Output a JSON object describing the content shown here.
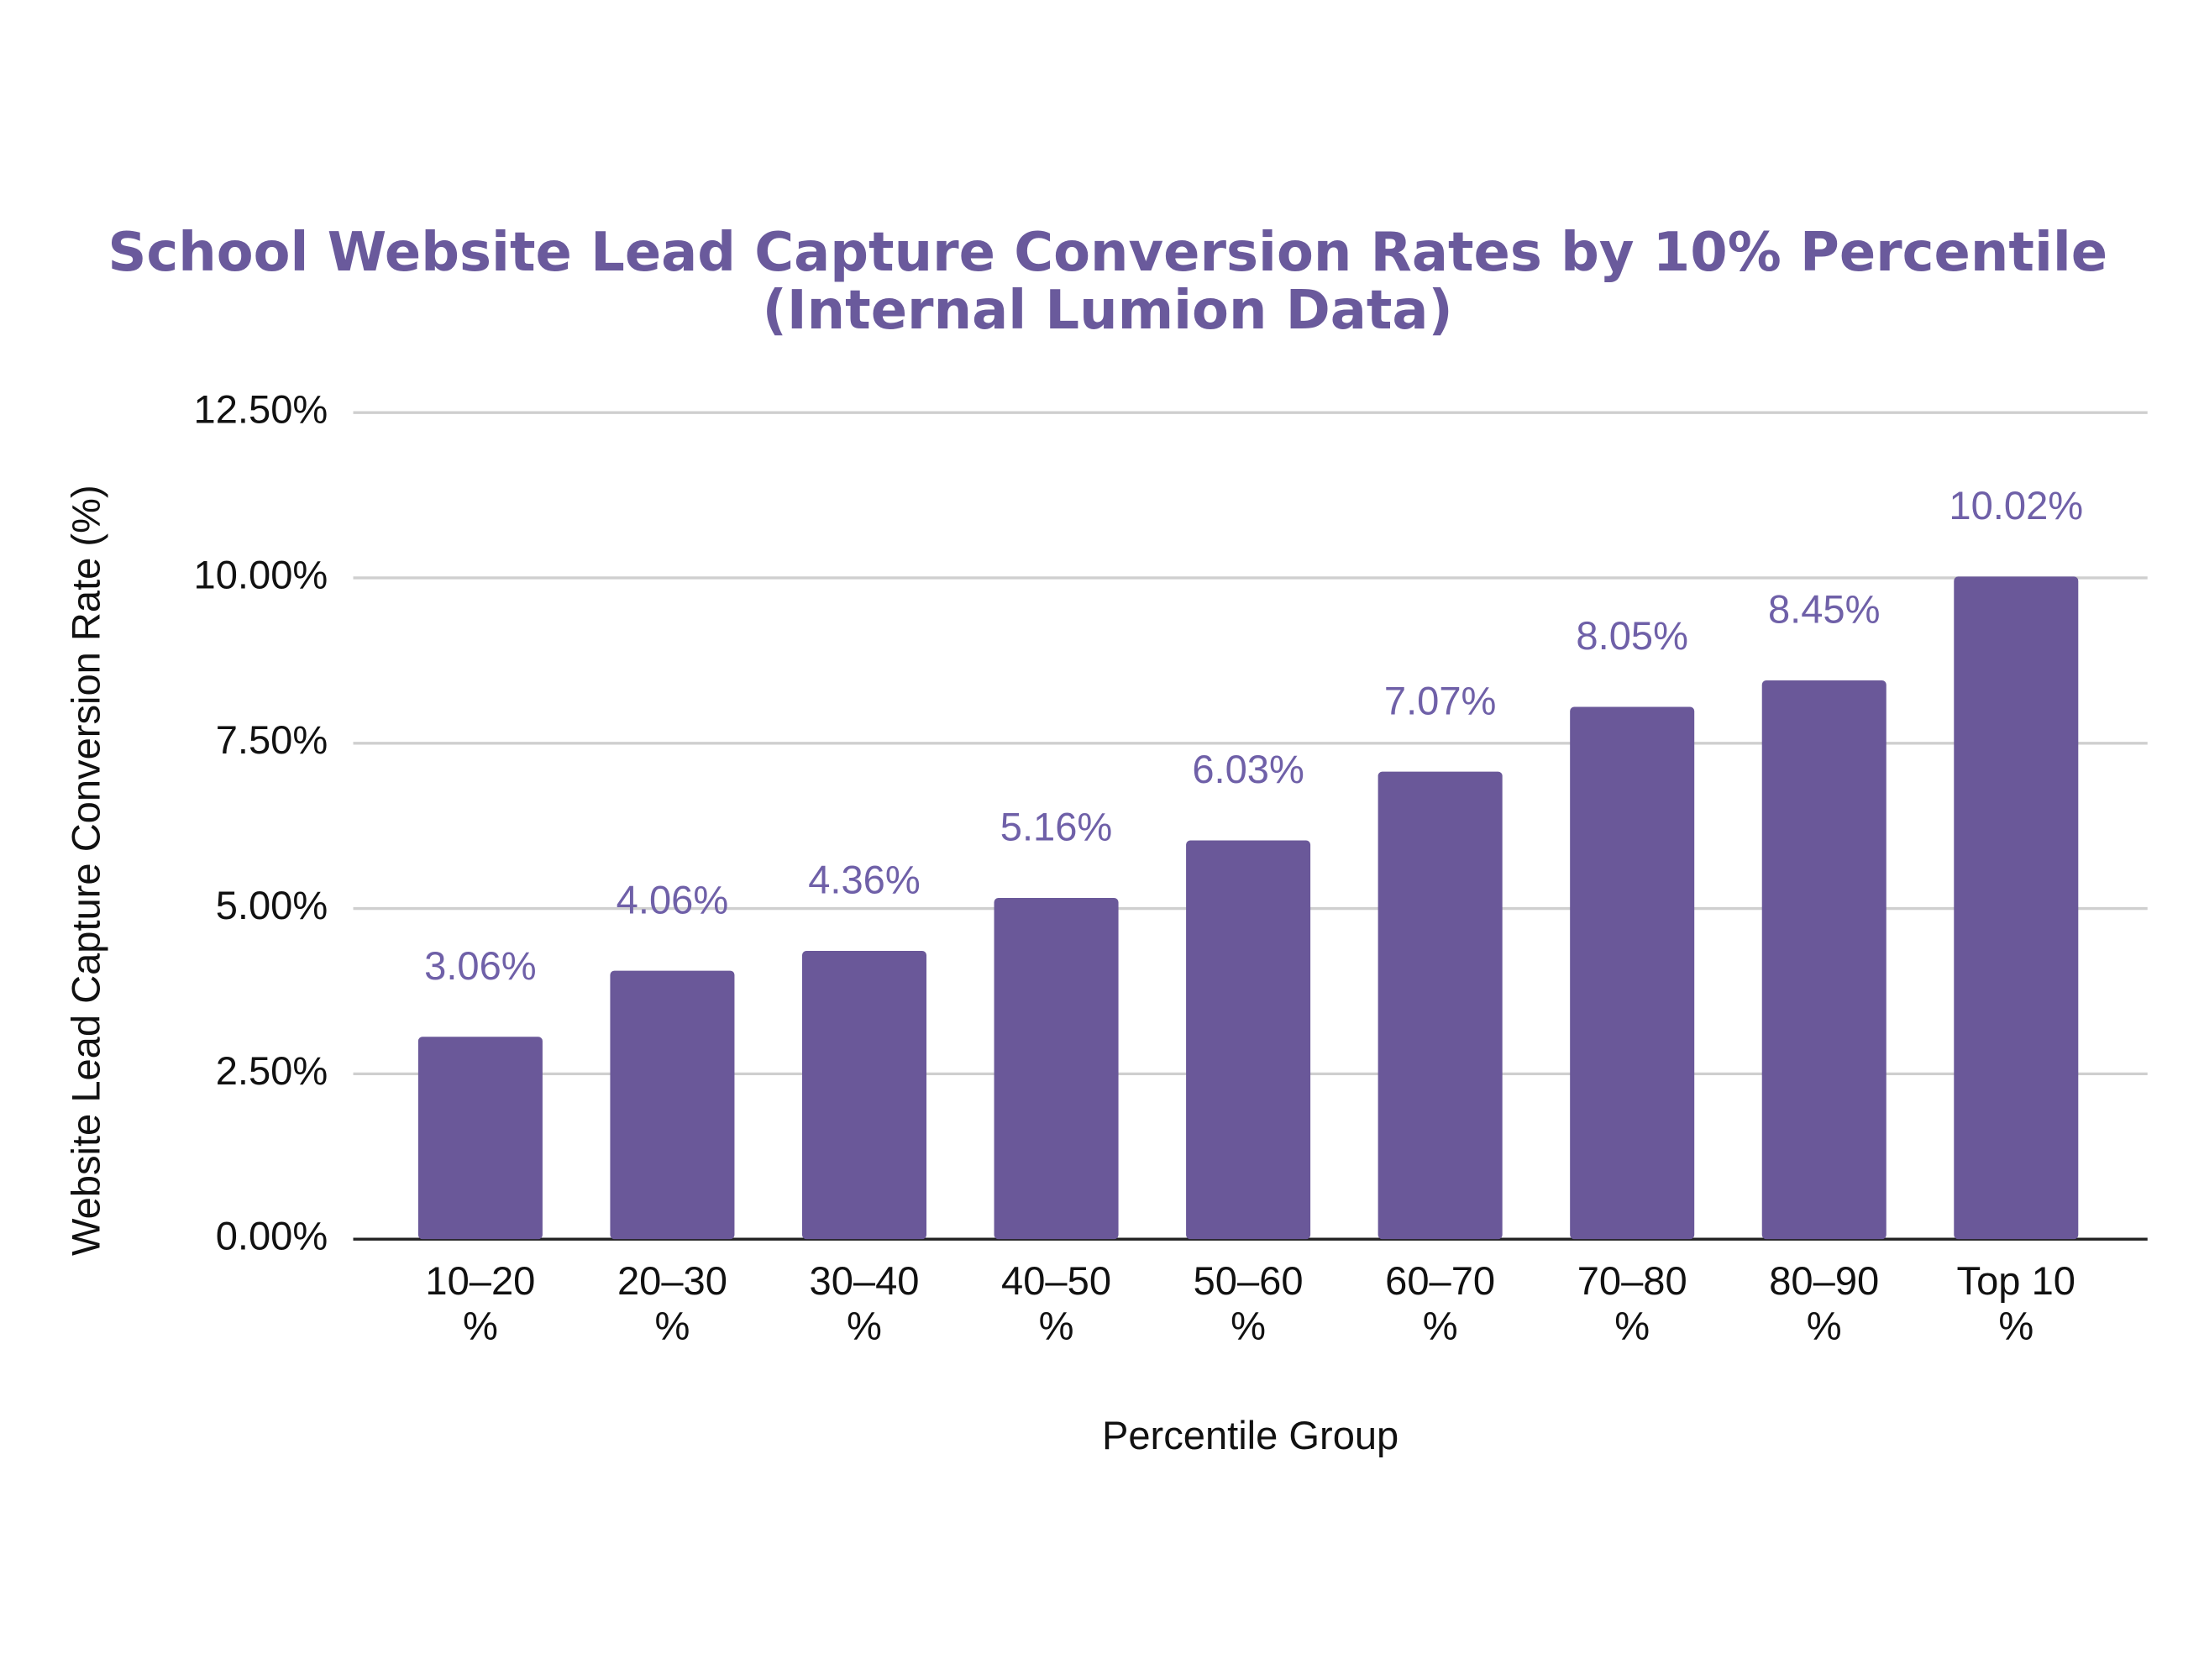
{
  "chart_data": {
    "type": "bar",
    "title": "School Website Lead Capture Conversion Rates by 10% Percentile",
    "subtitle": "(Internal Lumion Data)",
    "x_label": "Percentile Group",
    "y_label": "Website Lead Capture Conversion Rate (%)",
    "categories": [
      "10–20 %",
      "20–30 %",
      "30–40 %",
      "40–50 %",
      "50–60 %",
      "60–70 %",
      "70–80 %",
      "80–90 %",
      "Top 10 %"
    ],
    "values": [
      3.06,
      4.06,
      4.36,
      5.16,
      6.03,
      7.07,
      8.05,
      8.45,
      10.02
    ],
    "value_labels": [
      "3.06%",
      "4.06%",
      "4.36%",
      "5.16%",
      "6.03%",
      "7.07%",
      "8.05%",
      "8.45%",
      "10.02%"
    ],
    "color": "#6a5899",
    "label_color": "#6f60a8",
    "ylim": [
      0,
      12.5
    ],
    "yticks": [
      {
        "value": 0,
        "label": "0.00%"
      },
      {
        "value": 2.5,
        "label": "2.50%"
      },
      {
        "value": 5,
        "label": "5.00%"
      },
      {
        "value": 7.5,
        "label": "7.50%"
      },
      {
        "value": 10,
        "label": "10.00%"
      },
      {
        "value": 12.5,
        "label": "12.50%"
      }
    ],
    "grid": true
  }
}
